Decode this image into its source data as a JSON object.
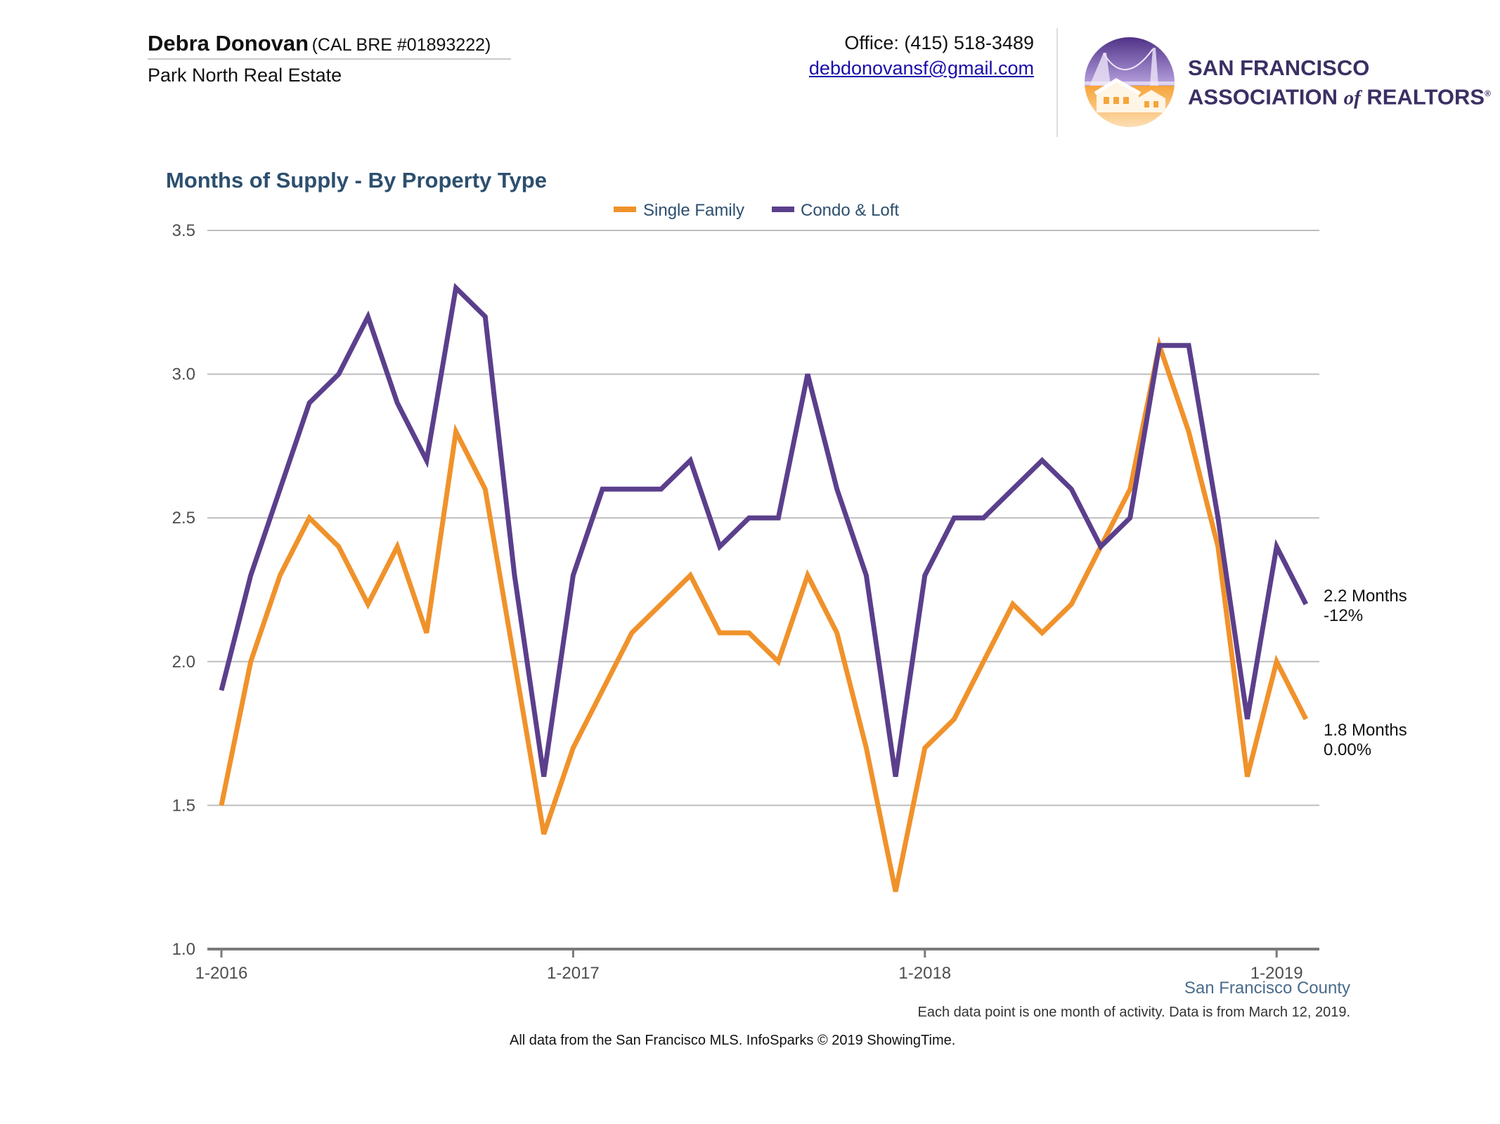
{
  "header": {
    "agent_name": "Debra Donovan",
    "agent_license": "(CAL BRE #01893222)",
    "agent_company": "Park North Real Estate",
    "office_phone": "Office: (415) 518-3489",
    "email": "debdonovansf@gmail.com"
  },
  "logo": {
    "line1": "SAN FRANCISCO",
    "line2_a": "ASSOCIATION",
    "line2_of": "of",
    "line2_b": "REALTORS",
    "reg": "®"
  },
  "footer": {
    "region": "San Francisco County",
    "note": "Each data point is one month of activity. Data is from March 12, 2019.",
    "source": "All data from the San Francisco MLS. InfoSparks © 2019 ShowingTime."
  },
  "chart_data": {
    "type": "line",
    "title": "Months of Supply - By Property Type",
    "xlabel": "",
    "ylabel": "",
    "ylim": [
      1.0,
      3.5
    ],
    "yticks": [
      "1.0",
      "1.5",
      "2.0",
      "2.5",
      "3.0",
      "3.5"
    ],
    "x_tick_labels": [
      "1-2016",
      "1-2017",
      "1-2018",
      "1-2019"
    ],
    "x_tick_indices": [
      0,
      12,
      24,
      36
    ],
    "grid": true,
    "legend_position": "top",
    "x": [
      "2016-01",
      "2016-02",
      "2016-03",
      "2016-04",
      "2016-05",
      "2016-06",
      "2016-07",
      "2016-08",
      "2016-09",
      "2016-10",
      "2016-11",
      "2016-12",
      "2017-01",
      "2017-02",
      "2017-03",
      "2017-04",
      "2017-05",
      "2017-06",
      "2017-07",
      "2017-08",
      "2017-09",
      "2017-10",
      "2017-11",
      "2017-12",
      "2018-01",
      "2018-02",
      "2018-03",
      "2018-04",
      "2018-05",
      "2018-06",
      "2018-07",
      "2018-08",
      "2018-09",
      "2018-10",
      "2018-11",
      "2018-12",
      "2019-01",
      "2019-02"
    ],
    "series": [
      {
        "name": "Single Family",
        "color": "#f0922b",
        "values": [
          1.5,
          2.0,
          2.3,
          2.5,
          2.4,
          2.2,
          2.4,
          2.1,
          2.8,
          2.6,
          2.0,
          1.4,
          1.7,
          1.9,
          2.1,
          2.2,
          2.3,
          2.1,
          2.1,
          2.0,
          2.3,
          2.1,
          1.7,
          1.2,
          1.7,
          1.8,
          2.0,
          2.2,
          2.1,
          2.2,
          2.4,
          2.6,
          3.1,
          2.8,
          2.4,
          1.6,
          2.0,
          1.8
        ],
        "end_label": "1.8 Months",
        "end_change": "0.00%"
      },
      {
        "name": "Condo & Loft",
        "color": "#5b3f8c",
        "values": [
          1.9,
          2.3,
          2.6,
          2.9,
          3.0,
          3.2,
          2.9,
          2.7,
          3.3,
          3.2,
          2.3,
          1.6,
          2.3,
          2.6,
          2.6,
          2.6,
          2.7,
          2.4,
          2.5,
          2.5,
          3.0,
          2.6,
          2.3,
          1.6,
          2.3,
          2.5,
          2.5,
          2.6,
          2.7,
          2.6,
          2.4,
          2.5,
          3.1,
          3.1,
          2.5,
          1.8,
          2.4,
          2.2
        ],
        "end_label": "2.2 Months",
        "end_change": "-12%"
      }
    ]
  }
}
